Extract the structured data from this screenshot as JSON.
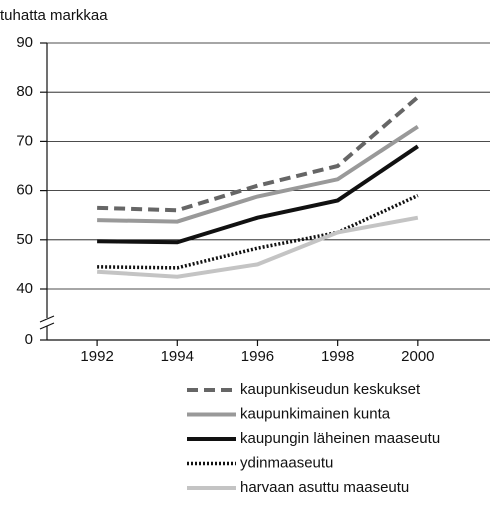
{
  "chart_data": {
    "type": "line",
    "y_label": "tuhatta markkaa",
    "x": [
      1992,
      1994,
      1996,
      1998,
      2000
    ],
    "xlim": [
      1990.75,
      2001.8
    ],
    "xticks": [
      1992,
      1994,
      1996,
      1998,
      2000
    ],
    "ylim": [
      0,
      90
    ],
    "ybreak": [
      0,
      40
    ],
    "yticks": [
      0,
      40,
      50,
      60,
      70,
      80,
      90
    ],
    "grid": true,
    "legend": "bottom",
    "series": [
      {
        "name": "kaupunkiseudun keskukset",
        "color": "#666666",
        "style": "dashed",
        "values": [
          56.5,
          56,
          61,
          65,
          79
        ]
      },
      {
        "name": "kaupunkimainen kunta",
        "color": "#999999",
        "style": "solid",
        "values": [
          54,
          53.7,
          58.8,
          62.3,
          73
        ]
      },
      {
        "name": "kaupungin läheinen maaseutu",
        "color": "#111111",
        "style": "solid",
        "values": [
          49.7,
          49.5,
          54.5,
          58,
          69
        ]
      },
      {
        "name": "ydinmaaseutu",
        "color": "#111111",
        "style": "dotted",
        "values": [
          44.5,
          44.3,
          48.3,
          51.5,
          59
        ]
      },
      {
        "name": "harvaan asuttu maaseutu",
        "color": "#c4c4c4",
        "style": "solid",
        "values": [
          43.5,
          42.5,
          45,
          51.5,
          54.5
        ]
      }
    ]
  }
}
